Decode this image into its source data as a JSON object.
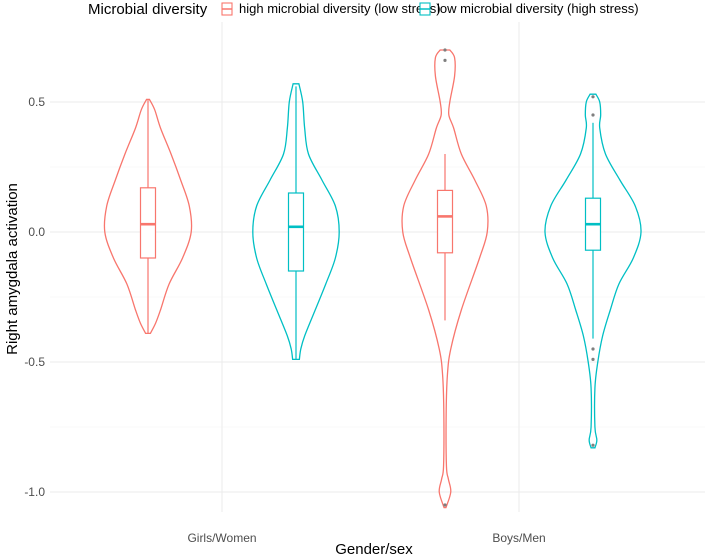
{
  "chart_data": {
    "type": "violin",
    "xlabel": "Gender/sex",
    "ylabel": "Right amygdala activation",
    "categories": [
      "Girls/Women",
      "Boys/Men"
    ],
    "ylim": [
      -1.1,
      0.72
    ],
    "yticks": [
      0.5,
      0.0,
      -0.5,
      -1.0
    ],
    "ytick_labels": [
      "0.5",
      "0.0",
      "-0.5",
      "-1.0"
    ],
    "grid": true,
    "legend": {
      "title": "Microbial diversity",
      "position": "top"
    },
    "series": [
      {
        "name": "high microbial diversity (low stress)",
        "color": "#F8766D",
        "groups": [
          {
            "category": "Girls/Women",
            "violin": [
              [
                -0.39,
                0.025
              ],
              [
                -0.35,
                0.08
              ],
              [
                -0.3,
                0.13
              ],
              [
                -0.2,
                0.22
              ],
              [
                -0.1,
                0.36
              ],
              [
                0.0,
                0.45
              ],
              [
                0.1,
                0.43
              ],
              [
                0.2,
                0.34
              ],
              [
                0.3,
                0.24
              ],
              [
                0.4,
                0.13
              ],
              [
                0.47,
                0.07
              ],
              [
                0.51,
                0.015
              ]
            ],
            "box": {
              "min": -0.39,
              "q1": -0.1,
              "median": 0.03,
              "q3": 0.17,
              "max": 0.51
            },
            "outliers": []
          },
          {
            "category": "Boys/Men",
            "violin": [
              [
                -1.06,
                0.01
              ],
              [
                -1.0,
                0.06
              ],
              [
                -0.95,
                0.035
              ],
              [
                -0.9,
                0.015
              ],
              [
                -0.7,
                0.012
              ],
              [
                -0.55,
                0.025
              ],
              [
                -0.45,
                0.06
              ],
              [
                -0.3,
                0.17
              ],
              [
                -0.1,
                0.36
              ],
              [
                0.0,
                0.44
              ],
              [
                0.1,
                0.43
              ],
              [
                0.2,
                0.31
              ],
              [
                0.3,
                0.17
              ],
              [
                0.4,
                0.09
              ],
              [
                0.45,
                0.04
              ],
              [
                0.5,
                0.05
              ],
              [
                0.6,
                0.1
              ],
              [
                0.67,
                0.1
              ],
              [
                0.7,
                0.05
              ]
            ],
            "box": {
              "min": -0.34,
              "q1": -0.08,
              "median": 0.06,
              "q3": 0.16,
              "max": 0.3
            },
            "outliers": [
              0.66,
              0.7,
              -1.05
            ]
          }
        ]
      },
      {
        "name": "low microbial diversity (high stress)",
        "color": "#00BFC4",
        "groups": [
          {
            "category": "Girls/Women",
            "violin": [
              [
                -0.49,
                0.035
              ],
              [
                -0.45,
                0.05
              ],
              [
                -0.4,
                0.09
              ],
              [
                -0.3,
                0.2
              ],
              [
                -0.2,
                0.31
              ],
              [
                -0.1,
                0.41
              ],
              [
                0.0,
                0.45
              ],
              [
                0.1,
                0.41
              ],
              [
                0.2,
                0.27
              ],
              [
                0.3,
                0.13
              ],
              [
                0.4,
                0.09
              ],
              [
                0.5,
                0.07
              ],
              [
                0.57,
                0.03
              ]
            ],
            "box": {
              "min": -0.49,
              "q1": -0.15,
              "median": 0.02,
              "q3": 0.15,
              "max": 0.56
            },
            "outliers": []
          },
          {
            "category": "Boys/Men",
            "violin": [
              [
                -0.83,
                0.02
              ],
              [
                -0.8,
                0.04
              ],
              [
                -0.75,
                0.02
              ],
              [
                -0.6,
                0.02
              ],
              [
                -0.5,
                0.05
              ],
              [
                -0.4,
                0.1
              ],
              [
                -0.3,
                0.18
              ],
              [
                -0.2,
                0.27
              ],
              [
                -0.1,
                0.42
              ],
              [
                0.0,
                0.5
              ],
              [
                0.1,
                0.44
              ],
              [
                0.2,
                0.28
              ],
              [
                0.3,
                0.13
              ],
              [
                0.4,
                0.07
              ],
              [
                0.45,
                0.08
              ],
              [
                0.5,
                0.07
              ],
              [
                0.53,
                0.03
              ]
            ],
            "box": {
              "min": -0.41,
              "q1": -0.07,
              "median": 0.03,
              "q3": 0.13,
              "max": 0.42
            },
            "outliers": [
              0.45,
              0.52,
              -0.45,
              -0.49,
              -0.82
            ]
          }
        ]
      }
    ]
  }
}
